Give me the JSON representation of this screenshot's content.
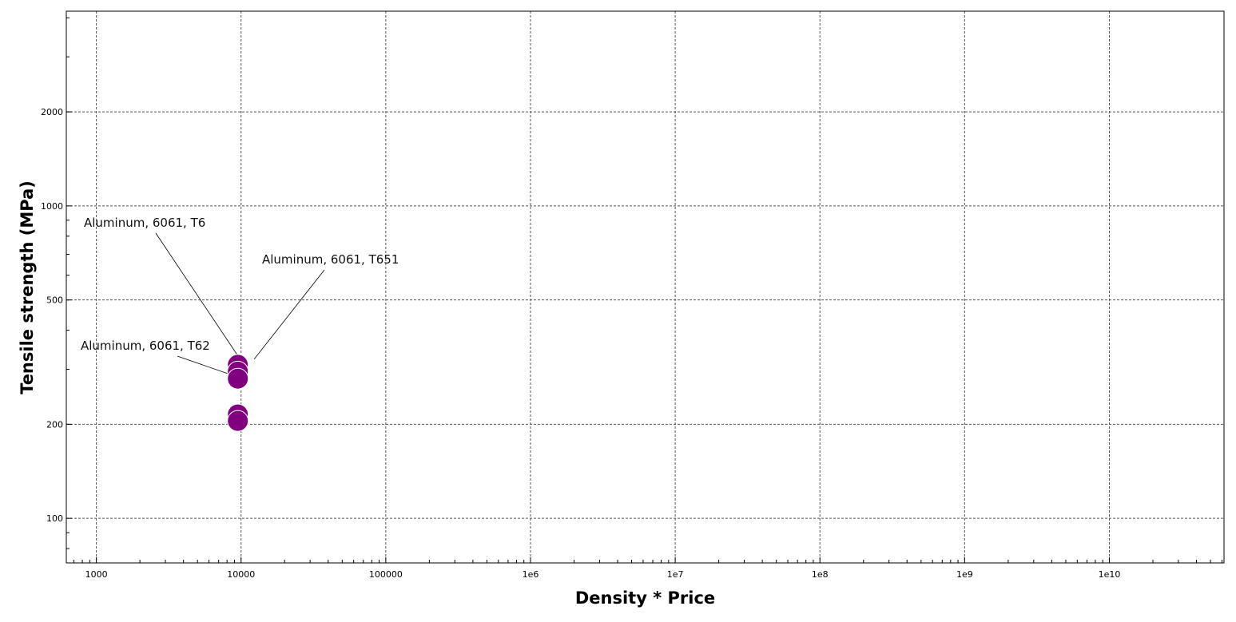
{
  "chart_data": {
    "type": "scatter",
    "title": "",
    "xlabel": "Density * Price",
    "ylabel": "Tensile strength (MPa)",
    "x_scale": "log",
    "y_scale": "log",
    "xlim": [
      620,
      62000000000
    ],
    "ylim": [
      72,
      4200
    ],
    "x_ticks": [
      {
        "value": 1000,
        "label": "1000"
      },
      {
        "value": 10000,
        "label": "10000"
      },
      {
        "value": 100000,
        "label": "100000"
      },
      {
        "value": 1000000,
        "label": "1e6"
      },
      {
        "value": 10000000,
        "label": "1e7"
      },
      {
        "value": 100000000,
        "label": "1e8"
      },
      {
        "value": 1000000000,
        "label": "1e9"
      },
      {
        "value": 10000000000,
        "label": "1e10"
      }
    ],
    "y_ticks": [
      {
        "value": 100,
        "label": "100"
      },
      {
        "value": 200,
        "label": "200"
      },
      {
        "value": 500,
        "label": "500"
      },
      {
        "value": 1000,
        "label": "1000"
      },
      {
        "value": 2000,
        "label": "2000"
      }
    ],
    "grid": true,
    "marker_color": "#800080",
    "points": [
      {
        "x": 9500,
        "y": 310
      },
      {
        "x": 9500,
        "y": 295
      },
      {
        "x": 9500,
        "y": 280
      },
      {
        "x": 9500,
        "y": 215
      },
      {
        "x": 9500,
        "y": 205
      }
    ],
    "annotations": [
      {
        "text": "Aluminum, 6061, T6",
        "point_index": 0
      },
      {
        "text": "Aluminum, 6061, T651",
        "point_index": 0
      },
      {
        "text": "Aluminum, 6061, T62",
        "point_index": 2
      }
    ]
  }
}
